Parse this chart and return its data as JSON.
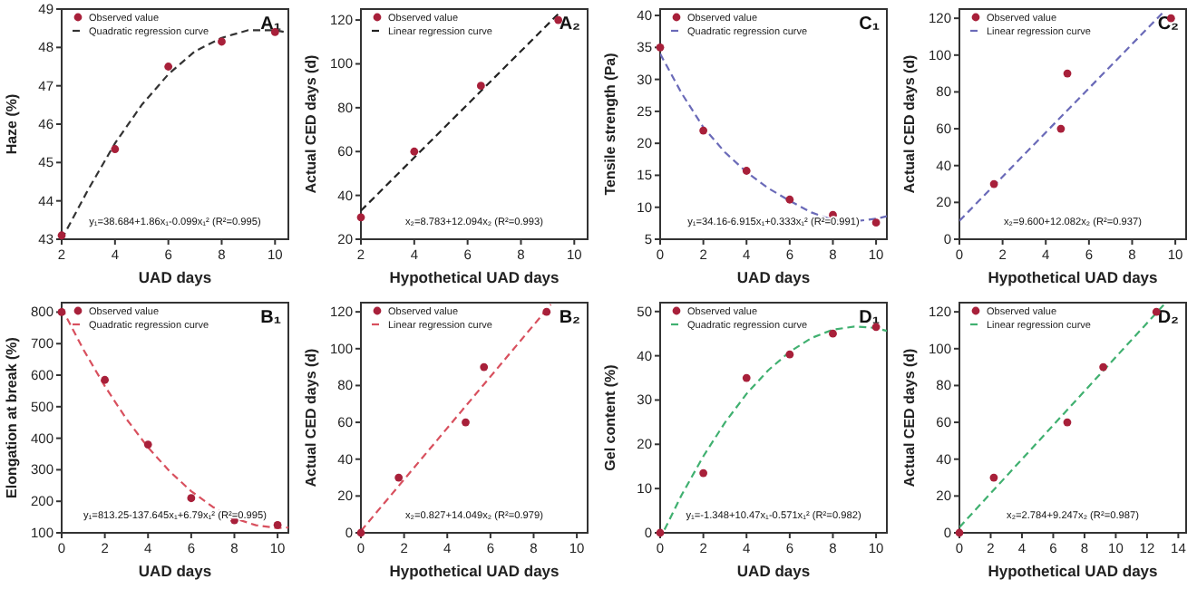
{
  "chart_data": [
    {
      "type": "scatter",
      "title": "A₁",
      "xlabel": "UAD days",
      "ylabel": "Haze (%)",
      "xlim": [
        2,
        10.5
      ],
      "xticks": [
        2,
        4,
        6,
        8,
        10
      ],
      "ylim": [
        43,
        49
      ],
      "yticks": [
        43,
        44,
        45,
        46,
        47,
        48,
        49
      ],
      "legend": "top left",
      "annotations": [
        "y₁=38.684+1.86x₁-0.099x₁² (R²=0.995)"
      ],
      "series": [
        {
          "name": "Observed value",
          "marker": "circle",
          "color": "#a8203a",
          "x": [
            2,
            4,
            6,
            8,
            10
          ],
          "values": [
            43.1,
            45.35,
            47.5,
            48.15,
            48.4
          ]
        },
        {
          "name": "Quadratic regression curve",
          "type": "line",
          "line_style": "dashed",
          "color": "#333333",
          "x": [
            2,
            3,
            4,
            5,
            6,
            7,
            8,
            9,
            10,
            10.5
          ],
          "values": [
            43.0,
            44.3,
            45.5,
            46.5,
            47.3,
            47.9,
            48.25,
            48.45,
            48.45,
            48.38
          ]
        }
      ]
    },
    {
      "type": "scatter",
      "title": "A₂",
      "xlabel": "Hypothetical UAD days",
      "ylabel": "Actual CED days (d)",
      "xlim": [
        2,
        10.5
      ],
      "xticks": [
        2,
        4,
        6,
        8,
        10
      ],
      "ylim": [
        20,
        125
      ],
      "yticks": [
        20,
        40,
        60,
        80,
        100,
        120
      ],
      "legend": "top left",
      "annotations": [
        "x₂=8.783+12.094x₂ (R²=0.993)"
      ],
      "series": [
        {
          "name": "Observed value",
          "marker": "circle",
          "color": "#a8203a",
          "x": [
            2,
            4,
            6.5,
            9.4
          ],
          "values": [
            30,
            60,
            90,
            120
          ]
        },
        {
          "name": "Linear regression curve",
          "type": "line",
          "line_style": "dashed",
          "color": "#222222",
          "x": [
            2,
            9.5
          ],
          "values": [
            33,
            124
          ]
        }
      ]
    },
    {
      "type": "scatter",
      "title": "C₁",
      "xlabel": "UAD days",
      "ylabel": "Tensile strength (Pa)",
      "xlim": [
        0,
        10.5
      ],
      "xticks": [
        0,
        2,
        4,
        6,
        8,
        10
      ],
      "ylim": [
        5,
        41
      ],
      "yticks": [
        5,
        10,
        15,
        20,
        25,
        30,
        35,
        40
      ],
      "legend": "top left",
      "annotations": [
        "y₁=34.16-6.915x₁+0.333x₁² (R²=0.991)"
      ],
      "series": [
        {
          "name": "Observed value",
          "marker": "circle",
          "color": "#a8203a",
          "x": [
            0,
            2,
            4,
            6,
            8,
            10
          ],
          "values": [
            35,
            22,
            15.7,
            11.2,
            8.8,
            7.6
          ]
        },
        {
          "name": "Quadratic regression curve",
          "type": "line",
          "line_style": "dashed",
          "color": "#6a6ab8",
          "x": [
            0,
            1,
            2,
            3,
            4,
            5,
            6,
            7,
            8,
            9,
            10,
            10.5
          ],
          "values": [
            34,
            27.8,
            22.5,
            18.6,
            15.5,
            13,
            11,
            9.2,
            8,
            7.8,
            8.2,
            8.6
          ]
        }
      ]
    },
    {
      "type": "scatter",
      "title": "C₂",
      "xlabel": "Hypothetical UAD days",
      "ylabel": "Actual CED days (d)",
      "xlim": [
        0,
        10.5
      ],
      "xticks": [
        0,
        2,
        4,
        6,
        8,
        10
      ],
      "ylim": [
        0,
        125
      ],
      "yticks": [
        0,
        20,
        40,
        60,
        80,
        100,
        120
      ],
      "legend": "top left",
      "annotations": [
        "x₂=9.600+12.082x₂ (R²=0.937)"
      ],
      "series": [
        {
          "name": "Observed value",
          "marker": "circle",
          "color": "#a8203a",
          "x": [
            1.6,
            4.7,
            5,
            9.8
          ],
          "values": [
            30,
            60,
            90,
            120
          ]
        },
        {
          "name": "Linear regression curve",
          "type": "line",
          "line_style": "dashed",
          "color": "#6a6ab8",
          "x": [
            0,
            9.5
          ],
          "values": [
            10,
            124
          ]
        }
      ]
    },
    {
      "type": "scatter",
      "title": "B₁",
      "xlabel": "UAD days",
      "ylabel": "Elongation at break (%)",
      "xlim": [
        0,
        10.5
      ],
      "xticks": [
        0,
        2,
        4,
        6,
        8,
        10
      ],
      "ylim": [
        100,
        830
      ],
      "yticks": [
        100,
        200,
        300,
        400,
        500,
        600,
        700,
        800
      ],
      "legend": "top left",
      "annotations": [
        "y₁=813.25-137.645x₁+6.79x₁² (R²=0.995)"
      ],
      "series": [
        {
          "name": "Observed value",
          "marker": "circle",
          "color": "#a8203a",
          "x": [
            0,
            2,
            4,
            6,
            8,
            10
          ],
          "values": [
            800,
            585,
            380,
            210,
            140,
            125
          ]
        },
        {
          "name": "Quadratic regression curve",
          "type": "line",
          "line_style": "dashed",
          "color": "#d8505e",
          "x": [
            0,
            1,
            2,
            3,
            4,
            5,
            6,
            7,
            8,
            9,
            10,
            10.5
          ],
          "values": [
            813,
            682,
            565,
            461,
            371,
            295,
            232,
            182,
            146,
            124,
            115,
            117
          ]
        }
      ]
    },
    {
      "type": "scatter",
      "title": "B₂",
      "xlabel": "Hypothetical UAD days",
      "ylabel": "Actual CED days (d)",
      "xlim": [
        0,
        10.5
      ],
      "xticks": [
        0,
        2,
        4,
        6,
        8,
        10
      ],
      "ylim": [
        0,
        125
      ],
      "yticks": [
        0,
        20,
        40,
        60,
        80,
        100,
        120
      ],
      "legend": "top left",
      "annotations": [
        "x₂=0.827+14.049x₂ (R²=0.979)"
      ],
      "series": [
        {
          "name": "Observed value",
          "marker": "circle",
          "color": "#a8203a",
          "x": [
            0,
            1.75,
            4.85,
            5.7,
            8.6
          ],
          "values": [
            0,
            30,
            60,
            90,
            120
          ]
        },
        {
          "name": "Linear regression curve",
          "type": "line",
          "line_style": "dashed",
          "color": "#d8505e",
          "x": [
            0,
            8.8
          ],
          "values": [
            1,
            124
          ]
        }
      ]
    },
    {
      "type": "scatter",
      "title": "D₁",
      "xlabel": "UAD days",
      "ylabel": "Gel content (%)",
      "xlim": [
        0,
        10.5
      ],
      "xticks": [
        0,
        2,
        4,
        6,
        8,
        10
      ],
      "ylim": [
        0,
        52
      ],
      "yticks": [
        0,
        10,
        20,
        30,
        40,
        50
      ],
      "legend": "top left",
      "annotations": [
        "y₁=-1.348+10.47x₁-0.571x₁² (R²=0.982)"
      ],
      "series": [
        {
          "name": "Observed value",
          "marker": "circle",
          "color": "#a8203a",
          "x": [
            0,
            2,
            4,
            6,
            8,
            10
          ],
          "values": [
            0,
            13.5,
            35,
            40.3,
            45,
            46.5
          ]
        },
        {
          "name": "Quadratic regression curve",
          "type": "line",
          "line_style": "dashed",
          "color": "#40b070",
          "x": [
            0.2,
            1,
            2,
            3,
            4,
            5,
            6,
            7,
            8,
            9,
            10,
            10.5
          ],
          "values": [
            0.7,
            8.6,
            17.3,
            24.9,
            31.4,
            36.7,
            40.9,
            44,
            45.9,
            46.6,
            46.3,
            45.6
          ]
        }
      ]
    },
    {
      "type": "scatter",
      "title": "D₂",
      "xlabel": "Hypothetical UAD days",
      "ylabel": "Actual CED days (d)",
      "xlim": [
        0,
        14.5
      ],
      "xticks": [
        0,
        2,
        4,
        6,
        8,
        10,
        12,
        14
      ],
      "ylim": [
        0,
        125
      ],
      "yticks": [
        0,
        20,
        40,
        60,
        80,
        100,
        120
      ],
      "legend": "top left",
      "annotations": [
        "x₂=2.784+9.247x₂ (R²=0.987)"
      ],
      "series": [
        {
          "name": "Observed value",
          "marker": "circle",
          "color": "#a8203a",
          "x": [
            0,
            2.2,
            6.9,
            9.2,
            12.6
          ],
          "values": [
            0,
            30,
            60,
            90,
            120
          ]
        },
        {
          "name": "Linear regression curve",
          "type": "line",
          "line_style": "dashed",
          "color": "#40b070",
          "x": [
            0,
            13.2
          ],
          "values": [
            3,
            125
          ]
        }
      ]
    }
  ]
}
